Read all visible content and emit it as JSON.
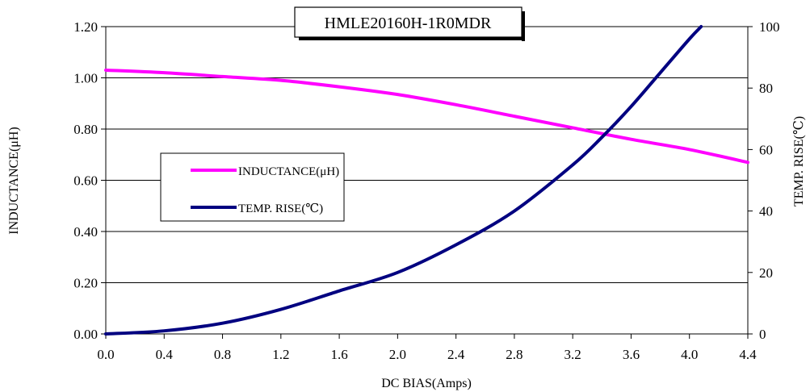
{
  "chart_data": {
    "type": "line",
    "title": "HMLE20160H-1R0MDR",
    "xlabel": "DC BIAS(Amps)",
    "ylabel": "INDUCTANCE(μH)",
    "y2label": "TEMP. RISE(℃)",
    "xlim": [
      0,
      4.4
    ],
    "ylim": [
      0,
      1.2
    ],
    "y2lim": [
      0,
      100
    ],
    "x_ticks": [
      "0.0",
      "0.4",
      "0.8",
      "1.2",
      "1.6",
      "2.0",
      "2.4",
      "2.8",
      "3.2",
      "3.6",
      "4.0",
      "4.4"
    ],
    "y_ticks": [
      "0.00",
      "0.20",
      "0.40",
      "0.60",
      "0.80",
      "1.00",
      "1.20"
    ],
    "y2_ticks": [
      "0",
      "20",
      "40",
      "60",
      "80",
      "100"
    ],
    "grid": "horizontal",
    "legend_position": "center-left",
    "series": [
      {
        "name": "INDUCTANCE(μH)",
        "axis": "left",
        "color": "#ff00ff",
        "x": [
          0.0,
          0.4,
          0.8,
          1.2,
          1.6,
          2.0,
          2.4,
          2.8,
          3.2,
          3.6,
          4.0,
          4.4
        ],
        "y": [
          1.03,
          1.02,
          1.005,
          0.99,
          0.965,
          0.935,
          0.895,
          0.85,
          0.805,
          0.76,
          0.72,
          0.67
        ]
      },
      {
        "name": "TEMP. RISE(℃)",
        "axis": "right",
        "color": "#000080",
        "x": [
          0.0,
          0.4,
          0.8,
          1.2,
          1.6,
          2.0,
          2.4,
          2.8,
          3.2,
          3.4,
          3.6,
          3.8,
          4.0,
          4.08
        ],
        "y": [
          0,
          1,
          3.5,
          8,
          14,
          20,
          29,
          40,
          55,
          64,
          74,
          85,
          96,
          100
        ]
      }
    ]
  }
}
